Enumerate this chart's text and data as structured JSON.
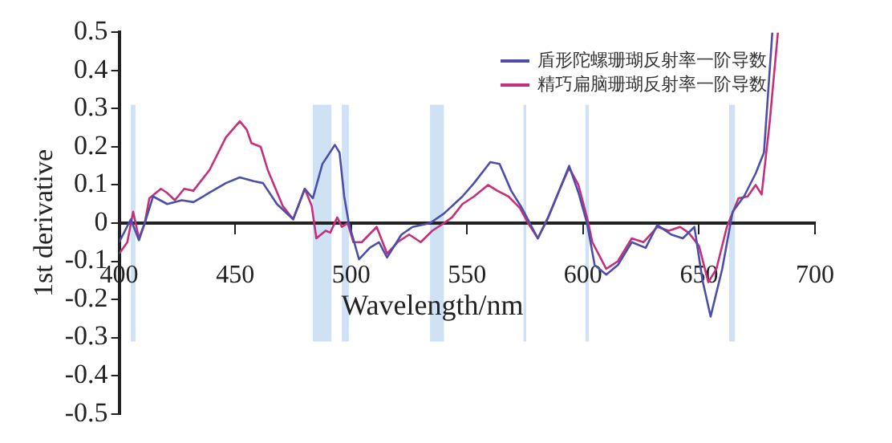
{
  "chart_data": {
    "type": "line",
    "xlabel": "Wavelength/nm",
    "ylabel": "1st derivative",
    "xlim": [
      400,
      700
    ],
    "xticks": [
      400,
      450,
      500,
      550,
      600,
      650,
      700
    ],
    "ylim": [
      -0.5,
      0.5
    ],
    "yticks": [
      -0.5,
      -0.4,
      -0.3,
      -0.2,
      -0.1,
      0,
      0.1,
      0.2,
      0.3,
      0.4,
      0.5
    ],
    "grid": false,
    "legend": "top right",
    "marker": "none",
    "line_style": "solid",
    "series": [
      {
        "name": "盾形陀螺珊瑚反射率一阶导数",
        "color": "#4b4fa8",
        "x": [
          400,
          405,
          408.5,
          411,
          414.6,
          420.7,
          427,
          432,
          439,
          446,
          452,
          458,
          462,
          468,
          475,
          480,
          483.5,
          487.6,
          493,
          495,
          497,
          499,
          503.4,
          508,
          512,
          515.5,
          521.7,
          526.5,
          534,
          540,
          548,
          553,
          560,
          564,
          569,
          573.6,
          580.5,
          585,
          589.7,
          594,
          598,
          601.7,
          605,
          610,
          615,
          621,
          627,
          632,
          638,
          643,
          648,
          651.5,
          655,
          660,
          664.5,
          669.4,
          674.4,
          678,
          681.6
        ],
        "values": [
          -0.05,
          0.01,
          -0.045,
          0,
          0.07,
          0.05,
          0.06,
          0.055,
          0.08,
          0.105,
          0.12,
          0.11,
          0.105,
          0.05,
          0.01,
          0.09,
          0.065,
          0.155,
          0.205,
          0.185,
          0.07,
          0,
          -0.095,
          -0.065,
          -0.05,
          -0.09,
          -0.03,
          -0.01,
          0,
          0.025,
          0.07,
          0.105,
          0.16,
          0.155,
          0.085,
          0.04,
          -0.04,
          0.015,
          0.085,
          0.15,
          0.08,
          0,
          -0.11,
          -0.135,
          -0.11,
          -0.05,
          -0.065,
          -0.005,
          -0.03,
          -0.04,
          -0.01,
          -0.15,
          -0.245,
          -0.12,
          0.03,
          0.07,
          0.13,
          0.185,
          0.5
        ]
      },
      {
        "name": "精巧扁脑珊瑚反射率一阶导数",
        "color": "#c4307a",
        "x": [
          400,
          403.5,
          406,
          408.5,
          411,
          413,
          418,
          420.5,
          424,
          428,
          432,
          439,
          446,
          452,
          455,
          457,
          461,
          464,
          470.5,
          475,
          480,
          483,
          485,
          489,
          491,
          494,
          496,
          498.5,
          501,
          504.6,
          511,
          515.5,
          520,
          525,
          530,
          535,
          540,
          543.5,
          548,
          553,
          559,
          563,
          567.8,
          572.7,
          576.3,
          580.5,
          584.9,
          589.7,
          594,
          598,
          601.7,
          604,
          610,
          615,
          621,
          626,
          632,
          637,
          641.8,
          645.5,
          650,
          654,
          657.5,
          662,
          667,
          671,
          674.4,
          677,
          680.5,
          684
        ],
        "values": [
          -0.08,
          -0.05,
          0.03,
          -0.04,
          0,
          0.065,
          0.09,
          0.08,
          0.06,
          0.09,
          0.085,
          0.14,
          0.225,
          0.267,
          0.245,
          0.21,
          0.2,
          0.14,
          0.045,
          0.01,
          0.09,
          0.045,
          -0.04,
          -0.02,
          -0.025,
          0.015,
          -0.01,
          0,
          -0.05,
          -0.05,
          -0.01,
          -0.08,
          -0.05,
          -0.03,
          -0.05,
          -0.02,
          0,
          0.015,
          0.05,
          0.07,
          0.1,
          0.085,
          0.07,
          0.04,
          0,
          -0.04,
          0.015,
          0.085,
          0.145,
          0.1,
          0.015,
          -0.05,
          -0.12,
          -0.1,
          -0.04,
          -0.05,
          -0.01,
          -0.02,
          -0.01,
          -0.025,
          -0.06,
          -0.155,
          -0.12,
          -0.01,
          0.065,
          0.07,
          0.1,
          0.075,
          0.267,
          0.5
        ]
      }
    ],
    "bands": [
      {
        "axis": "x",
        "from": 405,
        "to": 407,
        "color": "#cfe2f5"
      },
      {
        "axis": "x",
        "from": 483.5,
        "to": 491.5,
        "color": "#cfe2f5"
      },
      {
        "axis": "x",
        "from": 496,
        "to": 499,
        "color": "#cfe2f5"
      },
      {
        "axis": "x",
        "from": 534,
        "to": 540,
        "color": "#cfe2f5"
      },
      {
        "axis": "x",
        "from": 574.3,
        "to": 575.5,
        "color": "#cfe2f5"
      },
      {
        "axis": "x",
        "from": 601,
        "to": 602.5,
        "color": "#cfe2f5"
      },
      {
        "axis": "x",
        "from": 663,
        "to": 665.5,
        "color": "#cfe2f5"
      }
    ]
  }
}
